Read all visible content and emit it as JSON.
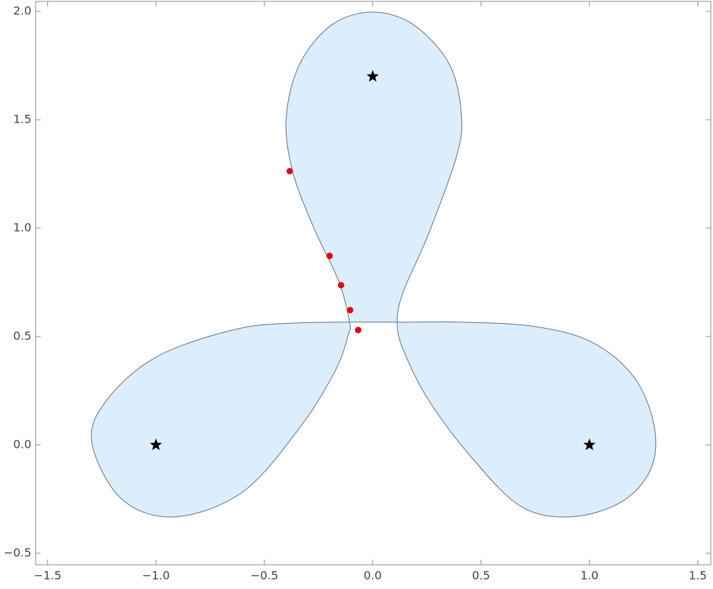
{
  "chart_data": {
    "type": "scatter",
    "xlim": [
      -1.555,
      1.56
    ],
    "ylim": [
      -0.553,
      2.046
    ],
    "xticks": [
      {
        "value": -1.5,
        "label": "−1.5"
      },
      {
        "value": -1,
        "label": "−1.0"
      },
      {
        "value": -0.5,
        "label": "−0.5"
      },
      {
        "value": 0,
        "label": "0.0"
      },
      0.5,
      {
        "value": 1,
        "label": "1.0"
      },
      1.5
    ],
    "yticks": [
      {
        "value": -0.5,
        "label": "−0.5"
      },
      {
        "value": 0,
        "label": "0.0"
      },
      0.5,
      {
        "value": 1,
        "label": "1.0"
      },
      1.5,
      {
        "value": 2,
        "label": "2.0"
      }
    ],
    "region": {
      "fill": "#dcedfc",
      "color": "#5e6f80",
      "x": [
        0.113,
        0.419,
        0.748,
        1.011,
        1.208,
        1.3,
        1.28,
        1.142,
        0.912,
        0.682,
        0.452,
        0.255,
        0.14,
        0.113,
        0.14,
        0.255,
        0.386,
        0.409,
        0.353,
        0.189,
        0,
        -0.189,
        -0.337,
        -0.399,
        -0.37,
        -0.271,
        -0.156,
        -0.107,
        -0.113,
        -0.173,
        -0.337,
        -0.6,
        -0.912,
        -1.158,
        -1.296,
        -1.224,
        -0.994,
        -0.633,
        -0.337
      ],
      "y": [
        0.566,
        0.566,
        0.546,
        0.474,
        0.309,
        0.079,
        -0.118,
        -0.266,
        -0.332,
        -0.283,
        -0.053,
        0.211,
        0.441,
        0.566,
        0.704,
        0.967,
        1.329,
        1.526,
        1.757,
        1.938,
        1.997,
        1.938,
        1.757,
        1.51,
        1.263,
        1.0,
        0.753,
        0.566,
        0.507,
        0.342,
        0.079,
        -0.217,
        -0.332,
        -0.25,
        0.013,
        0.211,
        0.408,
        0.533,
        0.563
      ]
    },
    "series": [
      {
        "color": "#000000",
        "marker": "star",
        "x": [
          -1,
          1,
          0
        ],
        "y": [
          0,
          0,
          1.7
        ]
      },
      {
        "color": "#e8000b",
        "marker": "circle",
        "x": [
          -0.383,
          -0.199,
          -0.146,
          -0.104,
          -0.067
        ],
        "y": [
          1.263,
          0.872,
          0.737,
          0.622,
          0.53
        ]
      }
    ]
  }
}
